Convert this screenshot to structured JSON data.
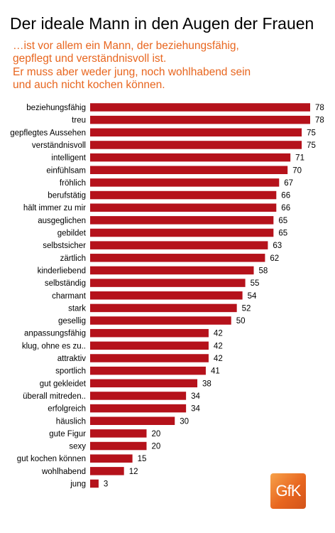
{
  "header": {
    "title": "Der ideale Mann in den Augen der Frauen",
    "subtitle_lines": [
      "…ist vor allem ein Mann, der beziehungsfähig,",
      "gepflegt und verständnisvoll ist.",
      "Er  muss aber weder jung, noch wohlhabend sein",
      "und auch nicht kochen können."
    ]
  },
  "logo": {
    "text": "GfK",
    "color": "#e8661f"
  },
  "colors": {
    "bar": "#b5121b",
    "subtitle": "#e8661f"
  },
  "chart_data": {
    "type": "bar",
    "orientation": "horizontal",
    "title": "Der ideale Mann in den Augen der Frauen",
    "xlim": [
      0,
      80
    ],
    "grid": false,
    "categories": [
      "beziehungsfähig",
      "treu",
      "gepflegtes Aussehen",
      "verständnisvoll",
      "intelligent",
      "einfühlsam",
      "fröhlich",
      "berufstätig",
      "hält immer zu mir",
      "ausgeglichen",
      "gebildet",
      "selbstsicher",
      "zärtlich",
      "kinderliebend",
      "selbständig",
      "charmant",
      "stark",
      "gesellig",
      "anpassungsfähig",
      "klug, ohne es zu..",
      "attraktiv",
      "sportlich",
      "gut gekleidet",
      "überall mitreden..",
      "erfolgreich",
      "häuslich",
      "gute Figur",
      "sexy",
      "gut kochen können",
      "wohlhabend",
      "jung"
    ],
    "values": [
      78,
      78,
      75,
      75,
      71,
      70,
      67,
      66,
      66,
      65,
      65,
      63,
      62,
      58,
      55,
      54,
      52,
      50,
      42,
      42,
      42,
      41,
      38,
      34,
      34,
      30,
      20,
      20,
      15,
      12,
      3
    ],
    "series": [
      {
        "values": [
          78,
          78,
          75,
          75,
          71,
          70,
          67,
          66,
          66,
          65,
          65,
          63,
          62,
          58,
          55,
          54,
          52,
          50,
          42,
          42,
          42,
          41,
          38,
          34,
          34,
          30,
          20,
          20,
          15,
          12,
          3
        ]
      }
    ]
  }
}
